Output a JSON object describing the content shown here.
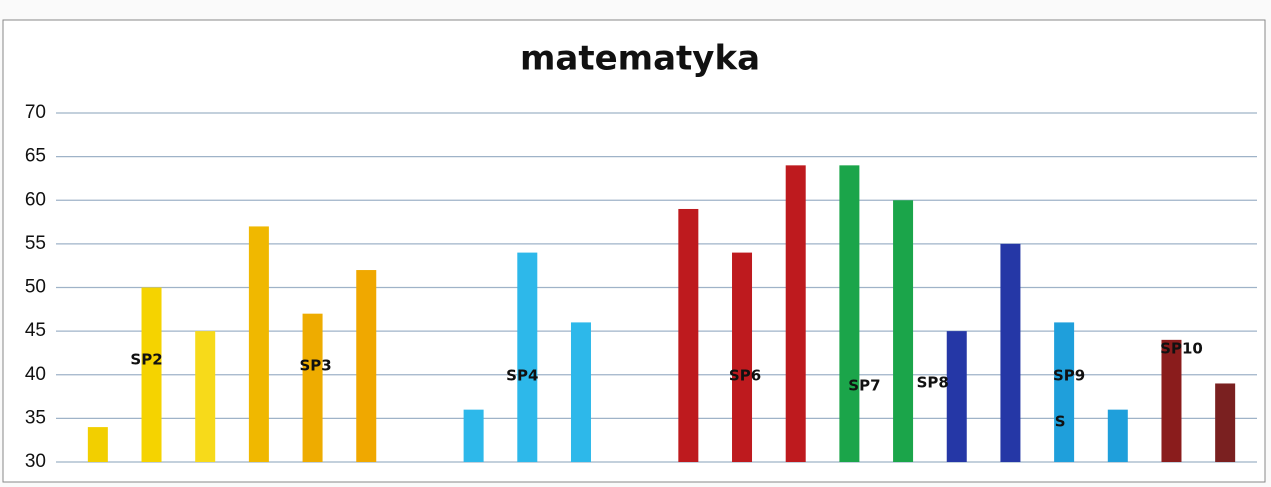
{
  "chart_data": {
    "type": "bar",
    "title": "matematyka",
    "categories": [
      null,
      null,
      null,
      null,
      null,
      null,
      null,
      null,
      null,
      null,
      null,
      null,
      null,
      null,
      null,
      null,
      null,
      null,
      null,
      null,
      null,
      null
    ],
    "values": [
      34,
      50,
      45,
      57,
      47,
      52,
      null,
      36,
      54,
      46,
      null,
      59,
      54,
      64,
      64,
      60,
      45,
      55,
      46,
      36,
      44,
      39
    ],
    "colors": [
      "#f2cf00",
      "#f5d300",
      "#f7da1a",
      "#f0b800",
      "#eeac00",
      "#f0a800",
      null,
      "#2db8ea",
      "#2db8ea",
      "#2db8ea",
      null,
      "#be1a1e",
      "#be1a1e",
      "#be1a1e",
      "#1ba54a",
      "#1ba54a",
      "#2537a6",
      "#2537a6",
      "#1f9fdb",
      "#1f9fdb",
      "#8a1c1c",
      "#7a2020"
    ],
    "annotations": [
      {
        "text": "SP2",
        "index": 1
      },
      {
        "text": "SP3",
        "index": 4
      },
      {
        "text": "SP4",
        "index": 8
      },
      {
        "text": "SP6",
        "index": 12
      },
      {
        "text": "SP7",
        "index": 14
      },
      {
        "text": "SP8",
        "index": 16
      },
      {
        "text": "SP9",
        "index": 18
      },
      {
        "text": "S",
        "index": 18
      },
      {
        "text": "SP10",
        "index": 20
      }
    ],
    "ylim": [
      30,
      70
    ],
    "yticks": [
      30,
      35,
      40,
      45,
      50,
      55,
      60,
      65,
      70
    ],
    "grid": true
  }
}
